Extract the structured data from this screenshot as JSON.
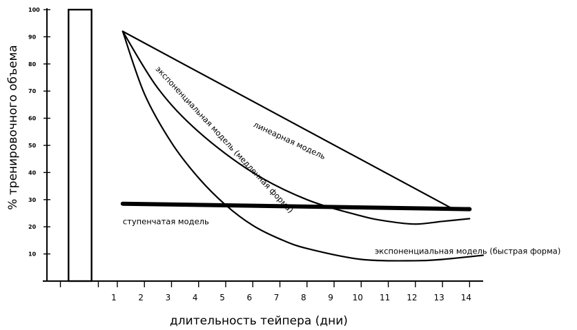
{
  "chart_data": {
    "type": "line",
    "title": "",
    "xlabel": "длительность тейпера (дни)",
    "ylabel": "% тренировочного объема",
    "xlim": [
      -1.75,
      14.5
    ],
    "ylim": [
      0,
      100
    ],
    "x_ticks": [
      1,
      2,
      3,
      4,
      5,
      6,
      7,
      8,
      9,
      10,
      11,
      12,
      13,
      14
    ],
    "y_ticks": [
      10,
      20,
      30,
      40,
      50,
      60,
      70,
      80,
      90,
      100
    ],
    "baseline_bar": {
      "x_start": -0.8,
      "x_end": 0.05,
      "value": 100
    },
    "series": [
      {
        "name": "линеарная модель",
        "style": "thin",
        "points": [
          [
            1.2,
            92
          ],
          [
            13.4,
            26.5
          ],
          [
            14,
            27
          ]
        ]
      },
      {
        "name": "экспоненциальная модель (медленная форма)",
        "style": "thin",
        "points": [
          [
            1.2,
            92
          ],
          [
            2.5,
            71
          ],
          [
            4,
            55
          ],
          [
            6,
            40
          ],
          [
            8,
            30
          ],
          [
            10,
            24
          ],
          [
            11,
            22
          ],
          [
            12,
            21
          ],
          [
            13,
            22
          ],
          [
            14,
            23
          ]
        ]
      },
      {
        "name": "экспоненциальная модель (быстрая форма)",
        "style": "thin",
        "points": [
          [
            1.2,
            92
          ],
          [
            2,
            69
          ],
          [
            3,
            51
          ],
          [
            4,
            38
          ],
          [
            5,
            28
          ],
          [
            6,
            20.5
          ],
          [
            7,
            15.5
          ],
          [
            8,
            12
          ],
          [
            10,
            8
          ],
          [
            12,
            7.5
          ],
          [
            13,
            8
          ],
          [
            14.5,
            9.5
          ]
        ]
      },
      {
        "name": "ступенчатая модель",
        "style": "thick",
        "points": [
          [
            1.2,
            28.5
          ],
          [
            14,
            26.5
          ]
        ]
      }
    ],
    "annotations": [
      {
        "text": "линеарная модель",
        "x": 6.0,
        "y": 57,
        "rotate_deg": 25
      },
      {
        "text": "экспоненциальная модель (медленная форма)",
        "x": 2.4,
        "y": 78,
        "rotate_deg": 47
      },
      {
        "text": "ступенчатая модель",
        "x": 1.2,
        "y": 21,
        "rotate_deg": 0
      },
      {
        "text": "экспоненциальная модель (быстрая форма)",
        "x": 10.5,
        "y": 10,
        "rotate_deg": 0
      }
    ],
    "grid": false,
    "legend": "none"
  }
}
